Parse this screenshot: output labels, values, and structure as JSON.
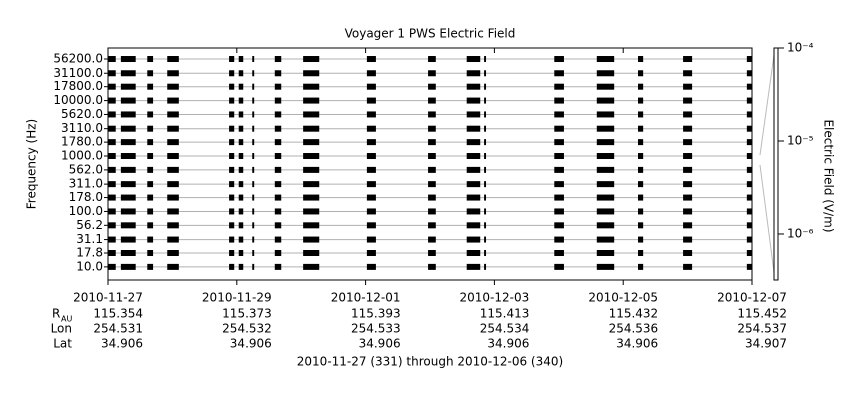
{
  "chart_data": {
    "type": "coverage",
    "title": "Voyager 1 PWS Electric Field",
    "y_label": "Frequency (Hz)",
    "y2_label": "Electric Field (V/m)",
    "footer": "2010-11-27 (331) through 2010-12-06 (340)",
    "color": "#000000",
    "grid": true,
    "ylog": true,
    "y2log": true,
    "xlim": [
      331,
      341
    ],
    "xticks": [
      {
        "value": 331,
        "label": "2010-11-27"
      },
      {
        "value": 333,
        "label": "2010-11-29"
      },
      {
        "value": 335,
        "label": "2010-12-01"
      },
      {
        "value": 337,
        "label": "2010-12-03"
      },
      {
        "value": 339,
        "label": "2010-12-05"
      },
      {
        "value": 341,
        "label": "2010-12-07"
      }
    ],
    "ylim": [
      5.8,
      88800
    ],
    "yticks": [
      {
        "value": 56200,
        "label": "56200.0"
      },
      {
        "value": 31100,
        "label": "31100.0"
      },
      {
        "value": 17800,
        "label": "17800.0"
      },
      {
        "value": 10000,
        "label": "10000.0"
      },
      {
        "value": 5620,
        "label": "5620.0"
      },
      {
        "value": 3110,
        "label": "3110.0"
      },
      {
        "value": 1780,
        "label": "1780.0"
      },
      {
        "value": 1000,
        "label": "1000.0"
      },
      {
        "value": 562,
        "label": "562.0"
      },
      {
        "value": 311,
        "label": "311.0"
      },
      {
        "value": 178,
        "label": "178.0"
      },
      {
        "value": 100,
        "label": "100.0"
      },
      {
        "value": 56.2,
        "label": "56.2"
      },
      {
        "value": 31.1,
        "label": "31.1"
      },
      {
        "value": 17.8,
        "label": "17.8"
      },
      {
        "value": 10,
        "label": "10.0"
      }
    ],
    "y2lim": [
      3.2e-07,
      0.0001
    ],
    "y2ticks": [
      {
        "value": 0.0001,
        "label": "10⁻⁴"
      },
      {
        "value": 1e-05,
        "label": "10⁻⁵"
      },
      {
        "value": 1e-06,
        "label": "10⁻⁶"
      }
    ],
    "intervals": [
      [
        331.0,
        331.12
      ],
      [
        331.2,
        331.43
      ],
      [
        331.61,
        331.7
      ],
      [
        331.92,
        332.1
      ],
      [
        332.88,
        332.96
      ],
      [
        333.03,
        333.1
      ],
      [
        333.24,
        333.27
      ],
      [
        333.59,
        333.69
      ],
      [
        334.03,
        334.28
      ],
      [
        335.02,
        335.16
      ],
      [
        335.97,
        336.09
      ],
      [
        336.57,
        336.78
      ],
      [
        336.84,
        336.87
      ],
      [
        337.93,
        338.08
      ],
      [
        338.59,
        338.86
      ],
      [
        339.23,
        339.31
      ],
      [
        339.93,
        340.07
      ],
      [
        340.92,
        341.0
      ]
    ],
    "ephemeris": [
      {
        "label": "R",
        "sub": "AU",
        "values": [
          115.354,
          115.373,
          115.393,
          115.413,
          115.432,
          115.452
        ]
      },
      {
        "label": "Lon",
        "values": [
          254.531,
          254.532,
          254.533,
          254.534,
          254.536,
          254.537
        ]
      },
      {
        "label": "Lat",
        "values": [
          34.906,
          34.906,
          34.906,
          34.906,
          34.906,
          34.907
        ]
      }
    ]
  }
}
